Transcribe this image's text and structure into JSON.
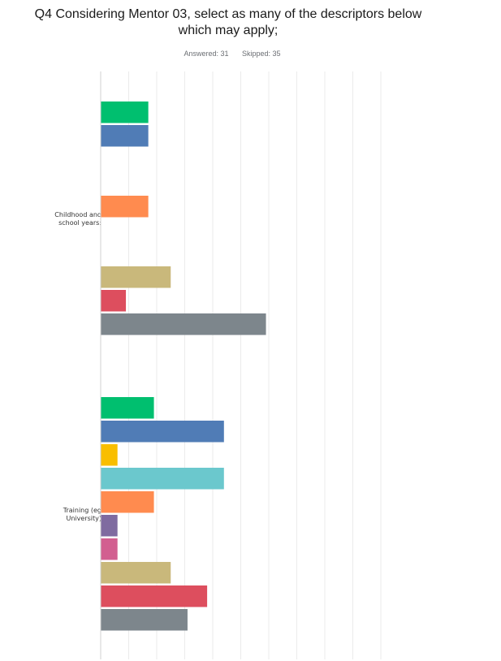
{
  "question": {
    "title_line1": "Q4 Considering Mentor 03, select as many of the descriptors below",
    "title_line2": "which may apply;",
    "answered_label": "Answered: 31",
    "skipped_label": "Skipped: 35"
  },
  "chart_data": {
    "type": "bar",
    "orientation": "horizontal",
    "title": "Q4 Considering Mentor 03, select as many of the descriptors below which may apply;",
    "xlim": [
      0,
      100
    ],
    "grid": true,
    "legend": "none",
    "categories": [
      {
        "label_lines": [
          "Childhood and",
          "school years:"
        ],
        "bars": [
          {
            "color": "#00bf6f",
            "value": 17
          },
          {
            "color": "#507cb6",
            "value": 17
          },
          {
            "color": "#f9be00",
            "value": 0
          },
          {
            "color": "#6bc8cd",
            "value": 0
          },
          {
            "color": "#ff8b4f",
            "value": 17
          },
          {
            "color": "#7f6ba0",
            "value": 0
          },
          {
            "color": "#d25f90",
            "value": 0
          },
          {
            "color": "#c9b87b",
            "value": 25
          },
          {
            "color": "#dd4e5e",
            "value": 9
          },
          {
            "color": "#7d868c",
            "value": 59
          }
        ]
      },
      {
        "label_lines": [
          "Training (eg",
          "University)"
        ],
        "bars": [
          {
            "color": "#00bf6f",
            "value": 19
          },
          {
            "color": "#507cb6",
            "value": 44
          },
          {
            "color": "#f9be00",
            "value": 6
          },
          {
            "color": "#6bc8cd",
            "value": 44
          },
          {
            "color": "#ff8b4f",
            "value": 19
          },
          {
            "color": "#7f6ba0",
            "value": 6
          },
          {
            "color": "#d25f90",
            "value": 6
          },
          {
            "color": "#c9b87b",
            "value": 25
          },
          {
            "color": "#dd4e5e",
            "value": 38
          },
          {
            "color": "#7d868c",
            "value": 31
          }
        ]
      }
    ]
  }
}
